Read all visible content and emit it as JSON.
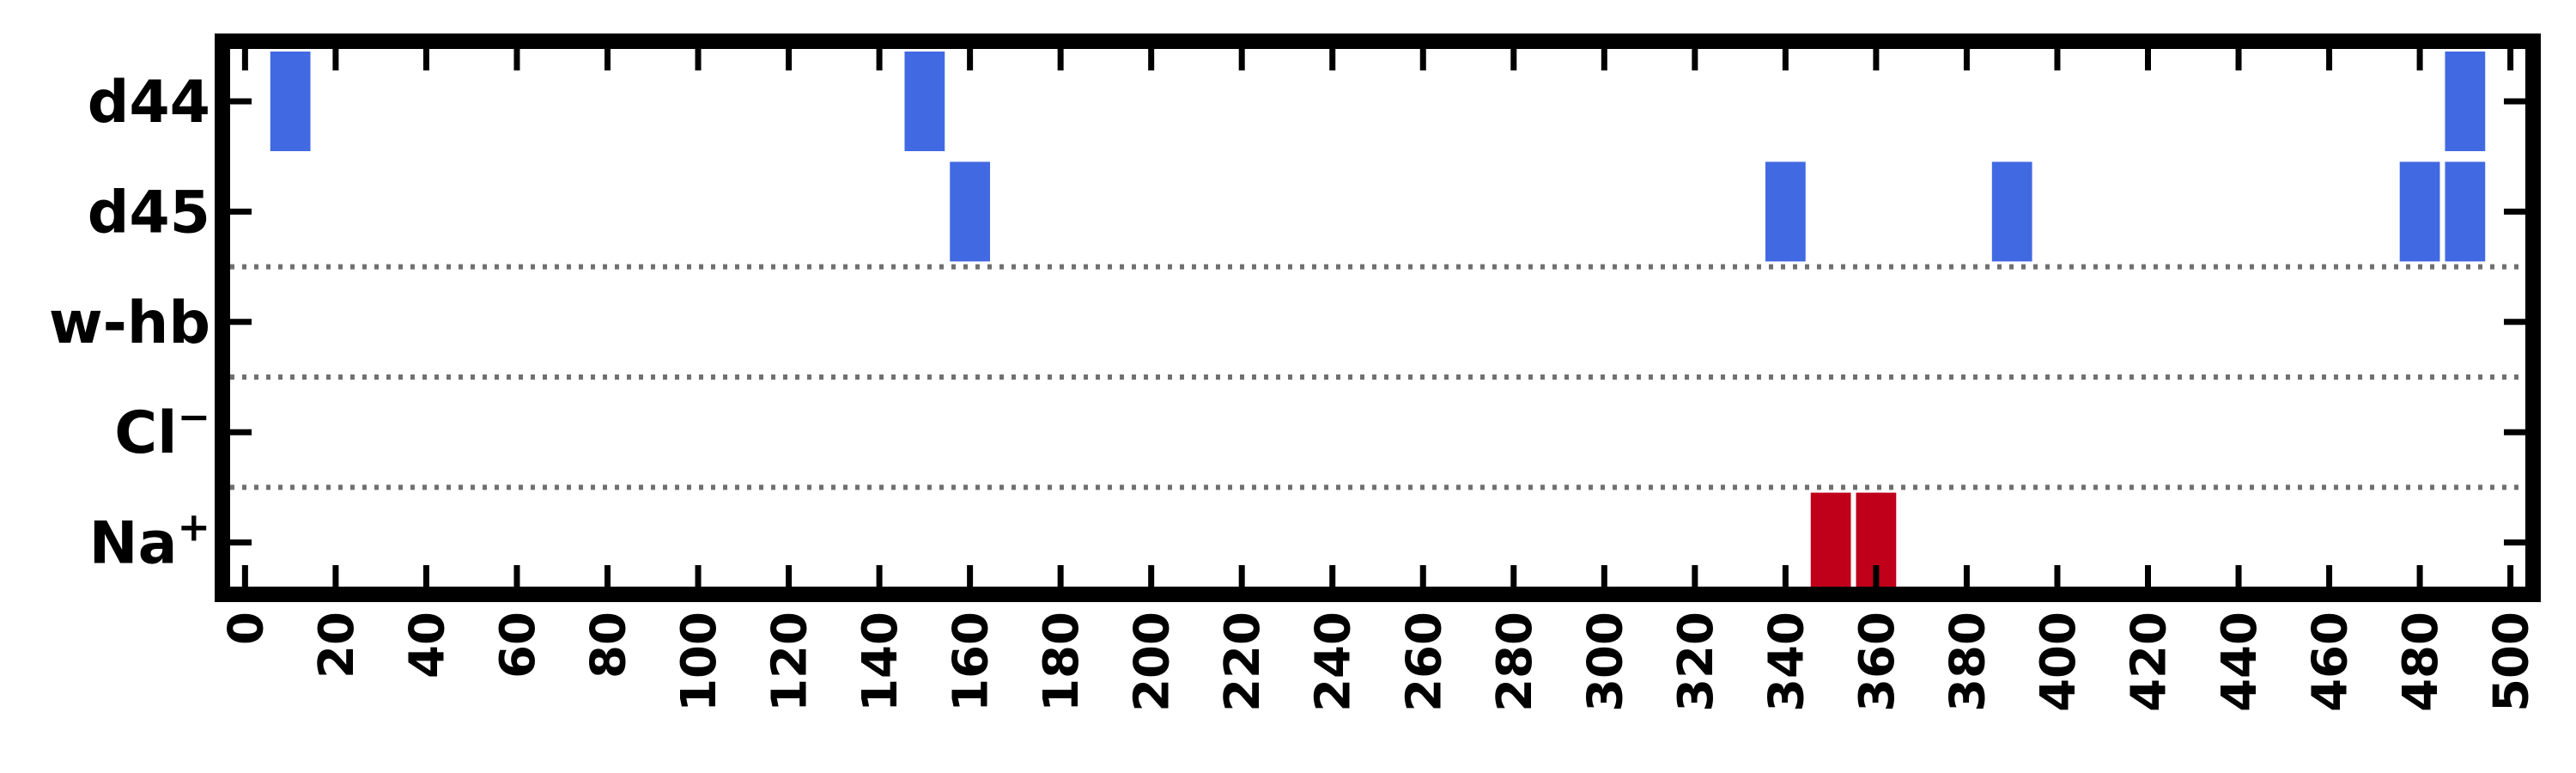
{
  "chart_data": {
    "type": "bar",
    "title": "",
    "xlabel": "",
    "ylabel": "",
    "xlim": [
      -5,
      505
    ],
    "xticks": [
      0,
      20,
      40,
      60,
      80,
      100,
      120,
      140,
      160,
      180,
      200,
      220,
      240,
      260,
      280,
      300,
      320,
      340,
      360,
      380,
      400,
      420,
      440,
      460,
      480,
      500
    ],
    "categories": [
      {
        "key": "d44",
        "label": "d44",
        "sup": ""
      },
      {
        "key": "d45",
        "label": "d45",
        "sup": ""
      },
      {
        "key": "w-hb",
        "label": "w-hb",
        "sup": ""
      },
      {
        "key": "Cl",
        "label": "Cl",
        "sup": "−"
      },
      {
        "key": "Na",
        "label": "Na",
        "sup": "+"
      }
    ],
    "bin_width": 10,
    "group_separators_after": [
      "d45",
      "w-hb",
      "Cl"
    ],
    "grid": false,
    "colors": {
      "d44": "#4169e1",
      "d45": "#4169e1",
      "w-hb": "#4169e1",
      "Cl": "#4169e1",
      "Na": "#c0001a",
      "separator": "#707070",
      "frame": "#000000"
    },
    "series": [
      {
        "key": "d44",
        "x": [
          10,
          150,
          490
        ]
      },
      {
        "key": "d45",
        "x": [
          160,
          340,
          390,
          480,
          490
        ]
      },
      {
        "key": "w-hb",
        "x": []
      },
      {
        "key": "Cl",
        "x": []
      },
      {
        "key": "Na",
        "x": [
          350,
          360
        ]
      }
    ]
  }
}
